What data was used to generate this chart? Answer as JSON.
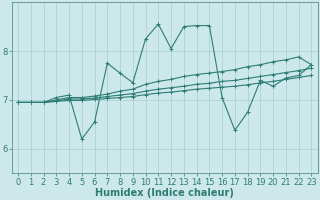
{
  "xlabel": "Humidex (Indice chaleur)",
  "ylabel": "",
  "bg_color": "#cce8eb",
  "line_color": "#2e7d72",
  "grid_color": "#a8cdd1",
  "xlim": [
    -0.5,
    23.5
  ],
  "ylim": [
    5.5,
    9.0
  ],
  "yticks": [
    6,
    7,
    8
  ],
  "xticks": [
    0,
    1,
    2,
    3,
    4,
    5,
    6,
    7,
    8,
    9,
    10,
    11,
    12,
    13,
    14,
    15,
    16,
    17,
    18,
    19,
    20,
    21,
    22,
    23
  ],
  "lines": [
    {
      "x": [
        0,
        1,
        2,
        3,
        4,
        5,
        6,
        7,
        8,
        9,
        10,
        11,
        12,
        13,
        14,
        15,
        16,
        17,
        18,
        19,
        20,
        21,
        22,
        23
      ],
      "y": [
        6.95,
        6.95,
        6.95,
        7.05,
        7.1,
        6.2,
        6.55,
        7.75,
        7.55,
        7.35,
        8.25,
        8.55,
        8.05,
        8.5,
        8.52,
        8.52,
        7.05,
        6.38,
        6.75,
        7.4,
        7.28,
        7.45,
        7.5,
        7.72
      ]
    },
    {
      "x": [
        0,
        1,
        2,
        3,
        4,
        5,
        6,
        7,
        8,
        9,
        10,
        11,
        12,
        13,
        14,
        15,
        16,
        17,
        18,
        19,
        20,
        21,
        22,
        23
      ],
      "y": [
        6.95,
        6.95,
        6.95,
        7.0,
        7.05,
        7.05,
        7.08,
        7.12,
        7.18,
        7.22,
        7.32,
        7.38,
        7.42,
        7.48,
        7.52,
        7.55,
        7.58,
        7.62,
        7.68,
        7.72,
        7.78,
        7.82,
        7.88,
        7.72
      ]
    },
    {
      "x": [
        0,
        1,
        2,
        3,
        4,
        5,
        6,
        7,
        8,
        9,
        10,
        11,
        12,
        13,
        14,
        15,
        16,
        17,
        18,
        19,
        20,
        21,
        22,
        23
      ],
      "y": [
        6.95,
        6.95,
        6.95,
        6.98,
        7.02,
        7.02,
        7.04,
        7.07,
        7.1,
        7.13,
        7.18,
        7.22,
        7.25,
        7.28,
        7.32,
        7.34,
        7.38,
        7.4,
        7.44,
        7.48,
        7.52,
        7.56,
        7.6,
        7.65
      ]
    },
    {
      "x": [
        0,
        1,
        2,
        3,
        4,
        5,
        6,
        7,
        8,
        9,
        10,
        11,
        12,
        13,
        14,
        15,
        16,
        17,
        18,
        19,
        20,
        21,
        22,
        23
      ],
      "y": [
        6.95,
        6.95,
        6.95,
        6.97,
        6.99,
        6.99,
        7.01,
        7.03,
        7.05,
        7.07,
        7.11,
        7.14,
        7.16,
        7.19,
        7.22,
        7.24,
        7.26,
        7.28,
        7.31,
        7.35,
        7.38,
        7.42,
        7.46,
        7.5
      ]
    }
  ],
  "marker": "+",
  "marker_size": 3,
  "line_width": 0.8,
  "font_size": 7,
  "tick_font_size": 6
}
